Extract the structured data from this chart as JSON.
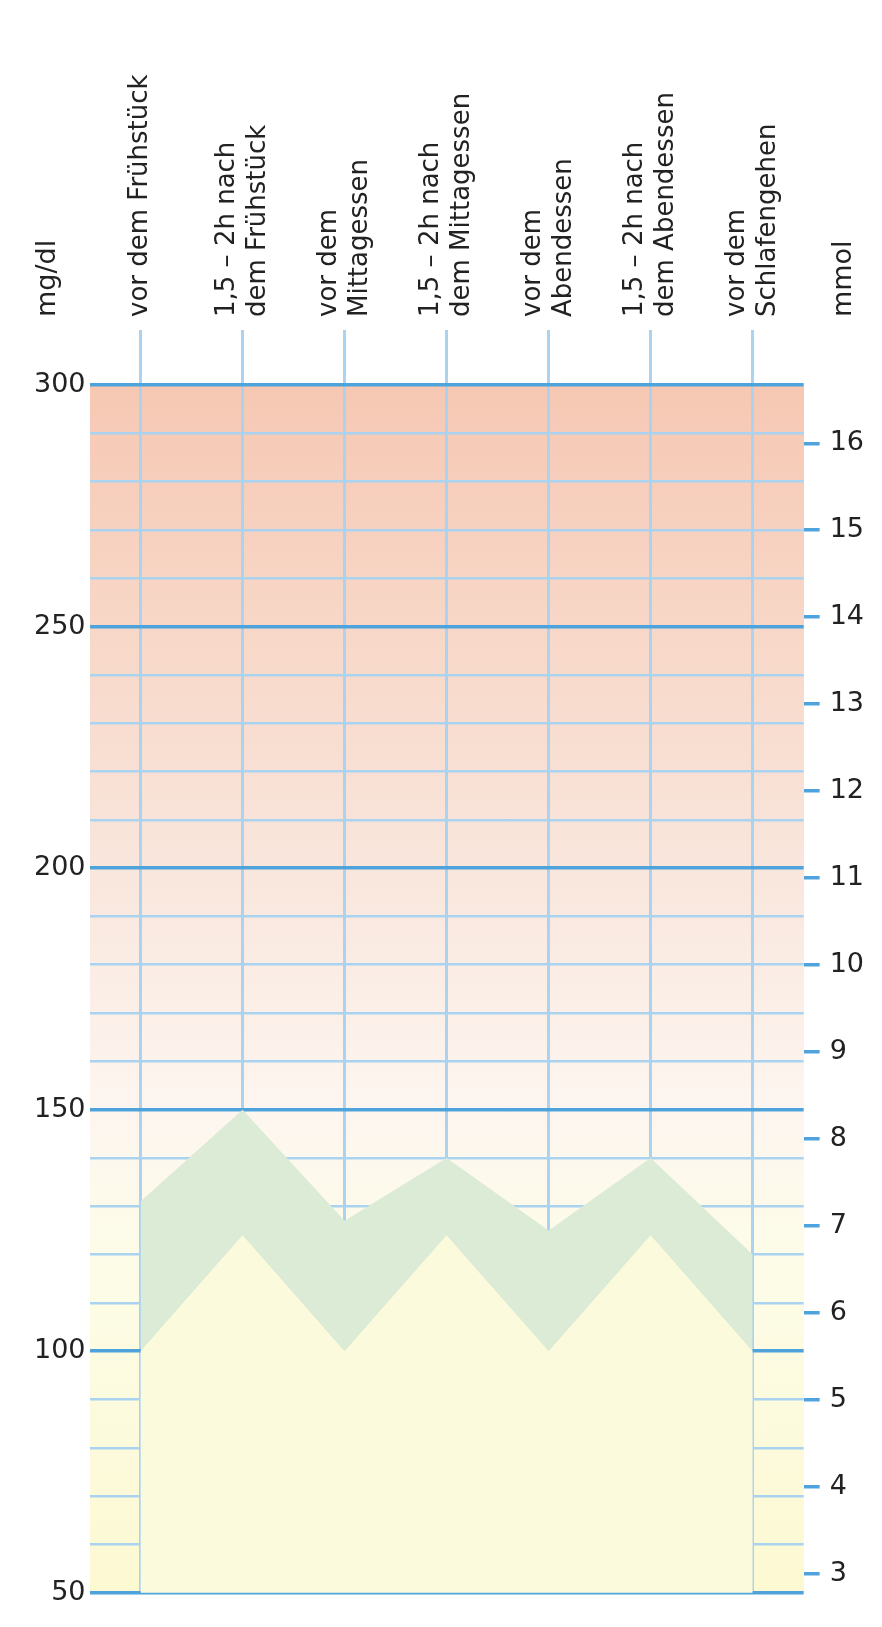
{
  "chart_data": {
    "type": "area",
    "categories": [
      "vor dem Frühstück",
      "1,5 – 2h nach dem Frühstück",
      "vor dem Mittagessen",
      "1,5 – 2h nach dem Mittagessen",
      "vor dem Abendessen",
      "1,5 – 2h nach dem Abendessen",
      "vor dem Schlafengehen"
    ],
    "ylabel": "mg/dl",
    "y2label": "mmol",
    "ylim": [
      50,
      300
    ],
    "yticks": [
      50,
      {
        "value": 60,
        "label": null
      },
      {
        "value": 70,
        "label": null
      },
      {
        "value": 80,
        "label": null
      },
      {
        "value": 90,
        "label": null
      },
      100,
      {
        "value": 110,
        "label": null
      },
      {
        "value": 120,
        "label": null
      },
      {
        "value": 130,
        "label": null
      },
      {
        "value": 140,
        "label": null
      },
      150,
      {
        "value": 160,
        "label": null
      },
      {
        "value": 170,
        "label": null
      },
      {
        "value": 180,
        "label": null
      },
      {
        "value": 190,
        "label": null
      },
      200,
      {
        "value": 210,
        "label": null
      },
      {
        "value": 220,
        "label": null
      },
      {
        "value": 230,
        "label": null
      },
      {
        "value": 240,
        "label": null
      },
      250,
      {
        "value": 260,
        "label": null
      },
      {
        "value": 270,
        "label": null
      },
      {
        "value": 280,
        "label": null
      },
      {
        "value": 290,
        "label": null
      },
      300
    ],
    "y2lim": [
      2.78,
      16.67
    ],
    "y2ticks": [
      3,
      4,
      5,
      6,
      7,
      8,
      9,
      10,
      11,
      12,
      13,
      14,
      15,
      16
    ],
    "grid": true,
    "series": [
      {
        "color": "#fcfadc",
        "values": [
          100,
          124,
          100,
          124,
          100,
          124,
          100
        ]
      },
      {
        "color": "#dcebd5",
        "values": [
          131,
          150,
          127,
          140,
          125,
          140,
          120
        ]
      }
    ]
  }
}
